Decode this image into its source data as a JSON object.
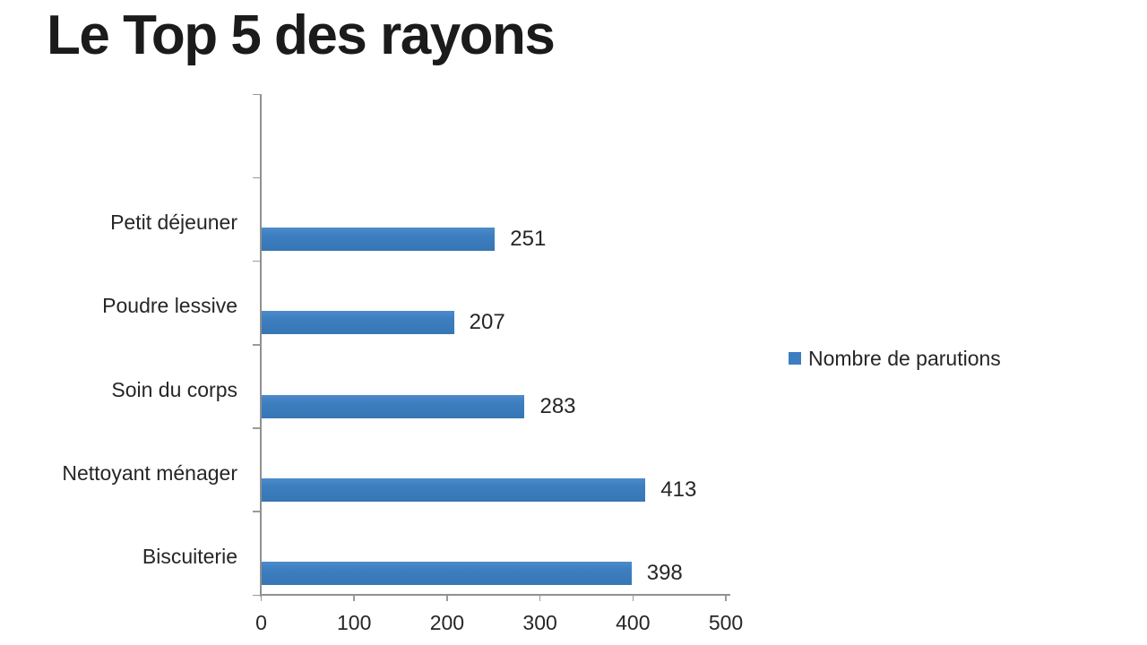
{
  "title": "Le Top 5 des rayons",
  "legend": {
    "label": "Nombre de parutions"
  },
  "chart_data": {
    "type": "bar",
    "orientation": "horizontal",
    "title": "Le Top 5 des rayons",
    "categories": [
      "Petit déjeuner",
      "Poudre lessive",
      "Soin du corps",
      "Nettoyant ménager",
      "Biscuiterie"
    ],
    "series": [
      {
        "name": "Nombre de parutions",
        "values": [
          251,
          207,
          283,
          413,
          398
        ]
      }
    ],
    "data_labels": [
      "251",
      "207",
      "283",
      "413",
      "398"
    ],
    "x_ticks": [
      "0",
      "100",
      "200",
      "300",
      "400",
      "500"
    ],
    "xlim": [
      0,
      500
    ],
    "grid": false,
    "legend_position": "right",
    "colors": {
      "bar": "#3c7ec0",
      "axis": "#909090",
      "text": "#262626",
      "title": "#1b1b1b"
    }
  }
}
